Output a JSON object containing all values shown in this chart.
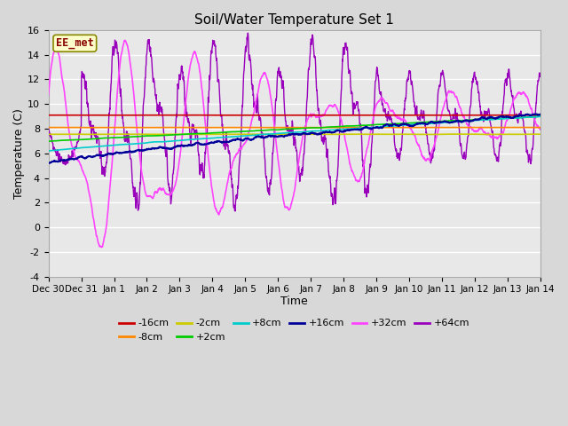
{
  "title": "Soil/Water Temperature Set 1",
  "xlabel": "Time",
  "ylabel": "Temperature (C)",
  "ylim": [
    -4,
    16
  ],
  "xlim": [
    0,
    15
  ],
  "bg_color": "#d8d8d8",
  "plot_bg_color": "#e8e8e8",
  "annotation_text": "EE_met",
  "annotation_color": "#880000",
  "annotation_bg": "#ffffcc",
  "annotation_edge": "#888800",
  "xtick_labels": [
    "Dec 30",
    "Dec 31",
    "Jan 1",
    "Jan 2",
    "Jan 3",
    "Jan 4",
    "Jan 5",
    "Jan 6",
    "Jan 7",
    "Jan 8",
    "Jan 9",
    "Jan 10",
    "Jan 11",
    "Jan 12",
    "Jan 13",
    "Jan 14"
  ],
  "series": [
    {
      "label": "-16cm",
      "color": "#cc0000",
      "linewidth": 1.2,
      "zorder": 5
    },
    {
      "label": "-8cm",
      "color": "#ff8800",
      "linewidth": 1.2,
      "zorder": 5
    },
    {
      "label": "-2cm",
      "color": "#cccc00",
      "linewidth": 1.2,
      "zorder": 5
    },
    {
      "label": "+2cm",
      "color": "#00cc00",
      "linewidth": 1.2,
      "zorder": 5
    },
    {
      "label": "+8cm",
      "color": "#00cccc",
      "linewidth": 1.2,
      "zorder": 5
    },
    {
      "label": "+16cm",
      "color": "#000099",
      "linewidth": 1.5,
      "zorder": 6
    },
    {
      "label": "+32cm",
      "color": "#ff44ff",
      "linewidth": 1.2,
      "zorder": 4
    },
    {
      "label": "+64cm",
      "color": "#9900bb",
      "linewidth": 1.0,
      "zorder": 3
    }
  ],
  "legend_ncol": 6,
  "grid_color": "#ffffff",
  "grid_lw": 1.0
}
